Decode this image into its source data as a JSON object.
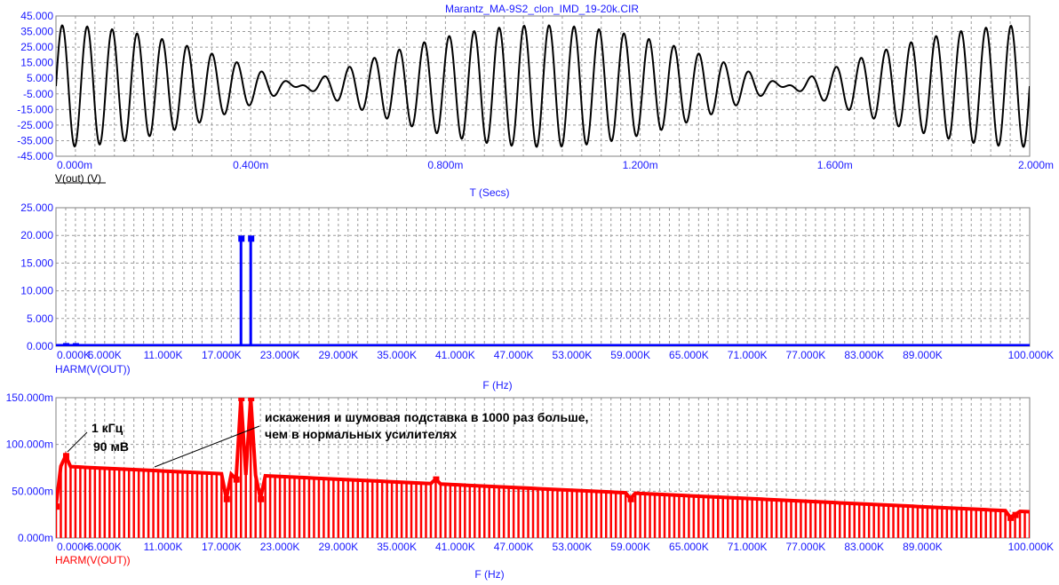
{
  "title": "Marantz_MA-9S2_clon_IMD_19-20k.CIR",
  "chart_data": [
    {
      "type": "line",
      "trace_label": "V(out) (V)",
      "trace_color": "#000000",
      "xlabel": "T (Secs)",
      "xlim": [
        0,
        0.002
      ],
      "ylim": [
        -45,
        45
      ],
      "x_tick_labels": [
        "0.000m",
        "0.400m",
        "0.800m",
        "1.200m",
        "1.600m",
        "2.000m"
      ],
      "y_tick_labels": [
        "45.000",
        "35.000",
        "25.000",
        "15.000",
        "5.000",
        "-5.000",
        "-15.000",
        "-25.000",
        "-35.000",
        "-45.000"
      ],
      "signal": {
        "tone1_hz": 19000,
        "tone2_hz": 20000,
        "amplitude_each_v": 19.5,
        "dc_v": 0
      }
    },
    {
      "type": "bar",
      "trace_label": "HARM(V(OUT))",
      "trace_color": "#0000ff",
      "xlabel": "F (Hz)",
      "xlim": [
        0,
        100000
      ],
      "ylim": [
        0,
        25
      ],
      "x_tick_labels": [
        "0.000K",
        "6.000K",
        "11.000K",
        "17.000K",
        "23.000K",
        "29.000K",
        "35.000K",
        "41.000K",
        "47.000K",
        "53.000K",
        "59.000K",
        "65.000K",
        "71.000K",
        "77.000K",
        "83.000K",
        "89.000K",
        "100.000K"
      ],
      "y_tick_labels": [
        "25.000",
        "20.000",
        "15.000",
        "10.000",
        "5.000",
        "0.000"
      ],
      "points": [
        {
          "x": 1000,
          "y": 0.09
        },
        {
          "x": 2000,
          "y": 0.08
        },
        {
          "x": 19000,
          "y": 19.5
        },
        {
          "x": 20000,
          "y": 19.5
        }
      ]
    },
    {
      "type": "bar",
      "trace_label": "HARM(V(OUT))",
      "trace_color": "#ff0000",
      "xlabel": "F (Hz)",
      "xlim": [
        0,
        100000
      ],
      "ylim": [
        0,
        0.15
      ],
      "x_tick_labels": [
        "0.000K",
        "6.000K",
        "11.000K",
        "17.000K",
        "23.000K",
        "29.000K",
        "35.000K",
        "41.000K",
        "47.000K",
        "53.000K",
        "59.000K",
        "65.000K",
        "71.000K",
        "77.000K",
        "83.000K",
        "89.000K",
        "100.000K"
      ],
      "y_tick_labels": [
        "150.000m",
        "100.000m",
        "50.000m",
        "0.000m"
      ],
      "spacing_hz": 500,
      "floor_start": 0.077,
      "floor_end": 0.028,
      "points": [
        {
          "x": 0,
          "y": 0.034
        },
        {
          "x": 1000,
          "y": 0.088
        },
        {
          "x": 17500,
          "y": 0.042
        },
        {
          "x": 18500,
          "y": 0.063
        },
        {
          "x": 19000,
          "y": 0.15
        },
        {
          "x": 20000,
          "y": 0.15
        },
        {
          "x": 21000,
          "y": 0.042
        },
        {
          "x": 39000,
          "y": 0.063
        },
        {
          "x": 59000,
          "y": 0.042
        },
        {
          "x": 98000,
          "y": 0.022
        },
        {
          "x": 98500,
          "y": 0.025
        }
      ],
      "annotations": {
        "peak_freq": "1 кГц",
        "peak_value": "90 мВ",
        "note_line1": "искажения и шумовая подставка в 1000 раз больше,",
        "note_line2": "чем в нормальных усилителях"
      }
    }
  ]
}
